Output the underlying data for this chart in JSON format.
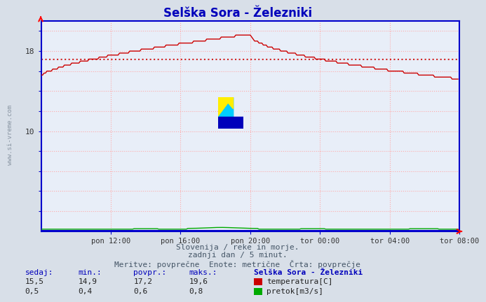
{
  "title": "Selška Sora - Železniki",
  "bg_color": "#d8dfe8",
  "plot_bg_color": "#e8eef8",
  "grid_color": "#ffaaaa",
  "temp_color": "#cc0000",
  "flow_color": "#00aa00",
  "blue_line_color": "#0000cc",
  "avg_line_color": "#cc0000",
  "avg_line_value": 17.2,
  "x_ticks_labels": [
    "pon 12:00",
    "pon 16:00",
    "pon 20:00",
    "tor 00:00",
    "tor 04:00",
    "tor 08:00"
  ],
  "x_tick_positions": [
    48,
    96,
    144,
    192,
    240,
    288
  ],
  "y_labeled_ticks": [
    10,
    18
  ],
  "y_all_ticks": [
    2,
    4,
    6,
    8,
    10,
    12,
    14,
    16,
    18,
    20
  ],
  "ylim": [
    0,
    21
  ],
  "xlim": [
    0,
    288
  ],
  "footer_line1": "Slovenija / reke in morje.",
  "footer_line2": "zadnji dan / 5 minut.",
  "footer_line3": "Meritve: povprečne  Enote: metrične  Črta: povprečje",
  "legend_title": "Selška Sora - Železniki",
  "sidebar_text": "www.si-vreme.com",
  "n_points": 288,
  "temp_current": "15,5",
  "temp_min": "14,9",
  "temp_avg": "17,2",
  "temp_max": "19,6",
  "flow_current": "0,5",
  "flow_min": "0,4",
  "flow_avg": "0,6",
  "flow_max": "0,8",
  "col_headers": [
    "sedaj:",
    "min.:",
    "povpr.:",
    "maks.:"
  ]
}
